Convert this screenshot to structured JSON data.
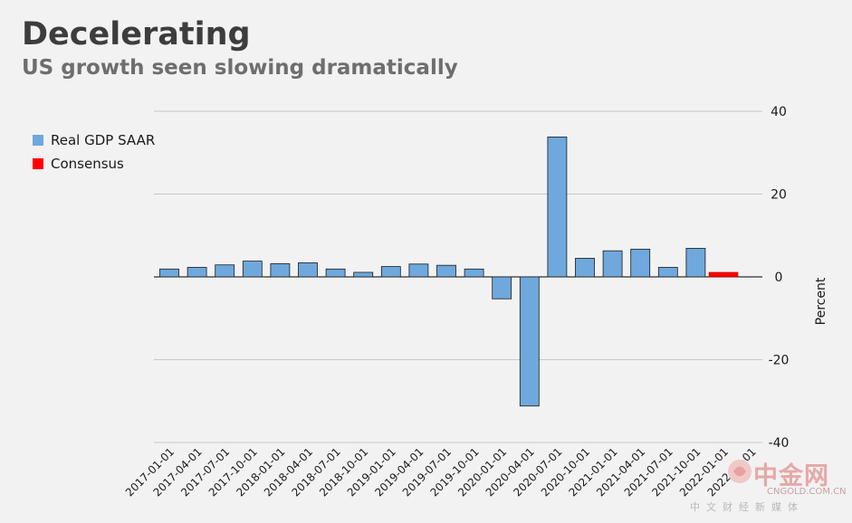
{
  "header": {
    "title": "Decelerating",
    "subtitle": "US growth seen slowing dramatically"
  },
  "legend": {
    "items": [
      {
        "label": "Real GDP SAAR",
        "color": "#6fa8dc"
      },
      {
        "label": "Consensus",
        "color": "#ff0000"
      }
    ]
  },
  "watermark": {
    "brand": "中金网",
    "domain": "CNGOLD.COM.CN",
    "tagline": "中文财经新媒体"
  },
  "colors": {
    "bar_fill": "#6fa8dc",
    "bar_stroke": "#1a1a1a",
    "consensus": "#ff0000",
    "grid": "#c8c8c8",
    "background": "#f2f2f2"
  },
  "chart_data": {
    "type": "bar",
    "categories": [
      "2017-01-01",
      "2017-04-01",
      "2017-07-01",
      "2017-10-01",
      "2018-01-01",
      "2018-04-01",
      "2018-07-01",
      "2018-10-01",
      "2019-01-01",
      "2019-04-01",
      "2019-07-01",
      "2019-10-01",
      "2020-01-01",
      "2020-04-01",
      "2020-07-01",
      "2020-10-01",
      "2021-01-01",
      "2021-04-01",
      "2021-07-01",
      "2021-10-01",
      "2022-01-01",
      "2022-04-01"
    ],
    "series": [
      {
        "name": "Real GDP SAAR",
        "values": [
          1.9,
          2.3,
          2.9,
          3.8,
          3.2,
          3.4,
          1.9,
          1.1,
          2.5,
          3.1,
          2.8,
          1.9,
          -5.3,
          -31.2,
          33.8,
          4.5,
          6.3,
          6.7,
          2.3,
          6.9,
          null,
          null
        ]
      },
      {
        "name": "Consensus",
        "values": [
          null,
          null,
          null,
          null,
          null,
          null,
          null,
          null,
          null,
          null,
          null,
          null,
          null,
          null,
          null,
          null,
          null,
          null,
          null,
          null,
          1.1,
          null
        ]
      }
    ],
    "ylabel": "Percent",
    "ylim": [
      -40,
      40
    ],
    "yticks": [
      40,
      20,
      0,
      -20,
      -40
    ],
    "grid": true,
    "y_axis_side": "right",
    "legend_position": "top-left"
  }
}
